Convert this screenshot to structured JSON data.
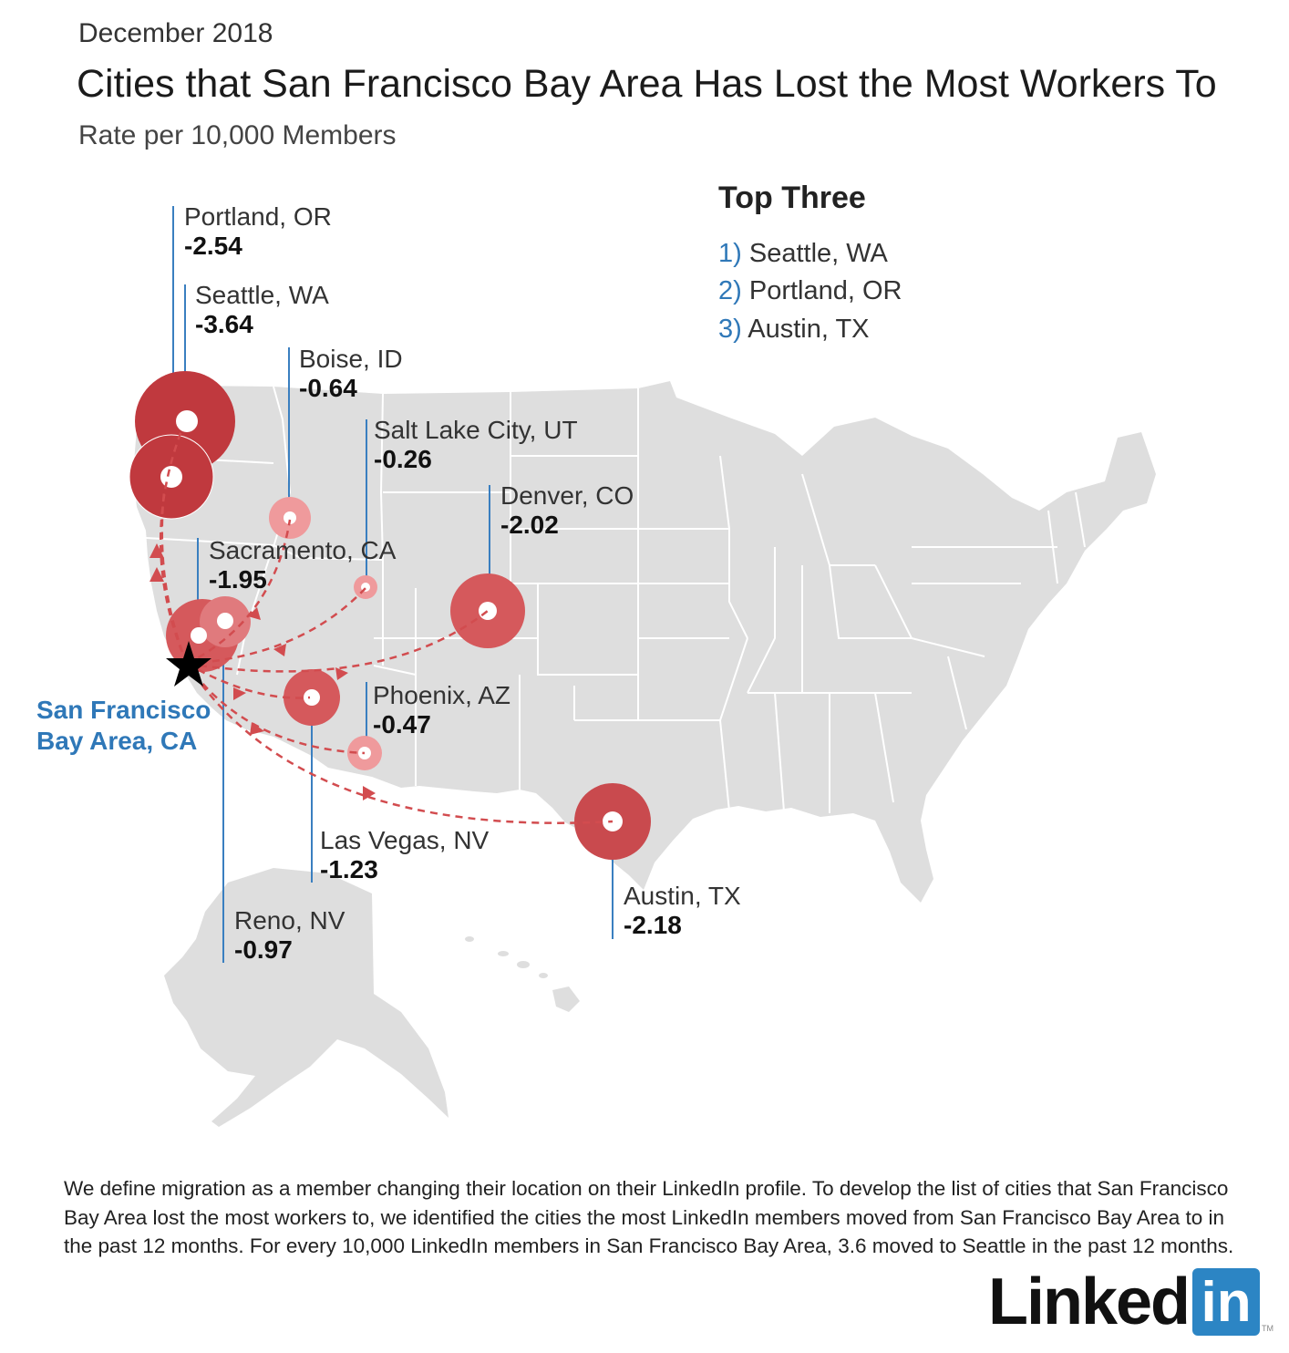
{
  "header": {
    "date": "December 2018",
    "title": "Cities that San Francisco Bay Area Has Lost the Most Workers To",
    "subtitle": "Rate per 10,000 Members"
  },
  "origin": {
    "name_line1": "San Francisco",
    "name_line2": "Bay Area, CA"
  },
  "top_three": {
    "heading": "Top Three",
    "items": [
      {
        "num": "1)",
        "city": "Seattle, WA"
      },
      {
        "num": "2)",
        "city": "Portland, OR"
      },
      {
        "num": "3)",
        "city": "Austin, TX"
      }
    ]
  },
  "cities": [
    {
      "name": "Portland, OR",
      "rate": "-2.54"
    },
    {
      "name": "Seattle, WA",
      "rate": "-3.64"
    },
    {
      "name": "Boise, ID",
      "rate": "-0.64"
    },
    {
      "name": "Salt Lake City, UT",
      "rate": "-0.26"
    },
    {
      "name": "Denver, CO",
      "rate": "-2.02"
    },
    {
      "name": "Sacramento, CA",
      "rate": "-1.95"
    },
    {
      "name": "Phoenix, AZ",
      "rate": "-0.47"
    },
    {
      "name": "Las Vegas, NV",
      "rate": "-1.23"
    },
    {
      "name": "Reno, NV",
      "rate": "-0.97"
    },
    {
      "name": "Austin, TX",
      "rate": "-2.18"
    }
  ],
  "colors": {
    "map_fill": "#dedede",
    "state_border": "#ffffff",
    "bubble_dark": "#c0393e",
    "bubble_light": "#ef9a9c",
    "leader_line": "#3a7fc0",
    "flow_line": "#d24c4f",
    "accent_blue": "#2f78b8"
  },
  "footnote": "We define migration as a member changing their location on their LinkedIn profile. To develop the list of cities that San Francisco Bay Area lost the most workers to, we identified the cities the most LinkedIn members moved from San Francisco Bay Area to in the past 12 months. For every 10,000 LinkedIn members in San Francisco Bay Area, 3.6 moved to Seattle in the past 12 months.",
  "logo": {
    "word": "Linked",
    "box": "in",
    "tm": "TM"
  }
}
